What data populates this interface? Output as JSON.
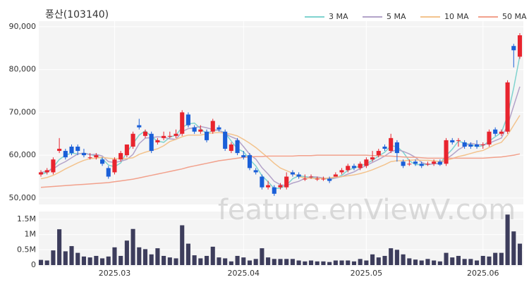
{
  "chart_data": {
    "type": "candlestick",
    "title": "풍산(103140)",
    "watermark": "feature.enViewV.com",
    "categories": [
      null,
      null,
      null,
      null,
      null,
      null,
      null,
      null,
      null,
      null,
      null,
      null,
      "2025.03",
      null,
      null,
      null,
      null,
      null,
      null,
      null,
      null,
      null,
      null,
      null,
      null,
      null,
      null,
      null,
      null,
      null,
      null,
      null,
      null,
      "2025.04",
      null,
      null,
      null,
      null,
      null,
      null,
      null,
      null,
      null,
      null,
      null,
      null,
      null,
      null,
      null,
      null,
      null,
      null,
      null,
      "2025.05",
      null,
      null,
      null,
      null,
      null,
      null,
      null,
      null,
      null,
      null,
      null,
      null,
      null,
      null,
      null,
      null,
      null,
      null,
      "2025.06",
      null,
      null,
      null,
      null,
      null,
      null
    ],
    "open": [
      55500,
      56000,
      56000,
      61000,
      61000,
      62000,
      62000,
      60500,
      59500,
      59500,
      59000,
      57000,
      56000,
      59000,
      60000,
      62000,
      67000,
      64500,
      65000,
      63000,
      64000,
      64500,
      64500,
      65000,
      69500,
      66500,
      65500,
      65500,
      65500,
      66500,
      65500,
      61000,
      63500,
      60000,
      60000,
      56500,
      55000,
      52500,
      52500,
      52500,
      52500,
      56000,
      55500,
      54500,
      55000,
      54500,
      54500,
      54500,
      55000,
      56000,
      56500,
      57500,
      57000,
      57500,
      59000,
      60000,
      62000,
      61000,
      63000,
      58500,
      58000,
      58500,
      58000,
      58000,
      58000,
      58500,
      58000,
      63500,
      63500,
      63000,
      62500,
      62500,
      62500,
      62500,
      66000,
      65000,
      65500,
      85500,
      83000
    ],
    "high": [
      56500,
      57000,
      59500,
      64000,
      61500,
      62500,
      62500,
      61500,
      60500,
      60500,
      59500,
      57500,
      59500,
      61000,
      62500,
      65500,
      68500,
      66000,
      65500,
      64000,
      65500,
      65500,
      66000,
      70500,
      70000,
      67000,
      67000,
      66000,
      68500,
      67000,
      66000,
      63000,
      64000,
      61000,
      60500,
      57000,
      55500,
      54000,
      53000,
      53500,
      56000,
      56500,
      56000,
      55500,
      55500,
      55000,
      55000,
      55000,
      56000,
      57000,
      58000,
      58000,
      58500,
      59500,
      61000,
      61500,
      62500,
      65000,
      63500,
      59000,
      59000,
      59000,
      58500,
      58500,
      59000,
      59000,
      64000,
      64000,
      64000,
      63500,
      63000,
      63500,
      63000,
      66000,
      66500,
      66000,
      77500,
      86000,
      88500
    ],
    "low": [
      55000,
      55500,
      55500,
      60500,
      59000,
      60000,
      60000,
      59500,
      59000,
      59000,
      57500,
      54500,
      55500,
      58500,
      59500,
      61500,
      66000,
      64000,
      60500,
      62500,
      63500,
      64000,
      64000,
      64500,
      66500,
      65000,
      65000,
      63000,
      65000,
      65500,
      61000,
      60500,
      60000,
      59000,
      56500,
      55500,
      52000,
      52000,
      50500,
      52000,
      52000,
      55000,
      54500,
      54000,
      54500,
      54000,
      54000,
      53500,
      55000,
      55500,
      56000,
      56500,
      56500,
      57000,
      58500,
      59500,
      61000,
      60500,
      58500,
      57000,
      57500,
      57500,
      57000,
      57500,
      57500,
      57500,
      57500,
      62500,
      62000,
      61500,
      61500,
      61500,
      61500,
      62000,
      64500,
      64500,
      65000,
      80500,
      82500
    ],
    "close": [
      56000,
      56500,
      59000,
      61500,
      59500,
      60500,
      61000,
      60000,
      59500,
      60000,
      58000,
      55000,
      59000,
      60500,
      62500,
      65000,
      66500,
      65500,
      61000,
      63500,
      64500,
      64500,
      65000,
      70000,
      67000,
      65500,
      66000,
      63500,
      68000,
      66000,
      61500,
      62500,
      60500,
      59500,
      57000,
      56000,
      52500,
      53000,
      51000,
      53000,
      55000,
      55500,
      55000,
      54500,
      55000,
      54500,
      54500,
      54000,
      55500,
      56500,
      57500,
      57000,
      58000,
      59000,
      59500,
      61000,
      61500,
      64000,
      60500,
      57500,
      58000,
      58000,
      57500,
      58000,
      58500,
      57800,
      63500,
      63000,
      63500,
      62000,
      62000,
      62000,
      62500,
      65500,
      65000,
      65500,
      77000,
      84500,
      88000
    ],
    "volume": [
      170000,
      150000,
      480000,
      1170000,
      450000,
      620000,
      400000,
      280000,
      250000,
      300000,
      220000,
      280000,
      580000,
      300000,
      800000,
      1180000,
      580000,
      520000,
      350000,
      550000,
      300000,
      250000,
      220000,
      1300000,
      700000,
      320000,
      220000,
      300000,
      600000,
      250000,
      220000,
      120000,
      300000,
      250000,
      150000,
      200000,
      550000,
      250000,
      200000,
      200000,
      200000,
      200000,
      150000,
      120000,
      150000,
      120000,
      120000,
      100000,
      150000,
      150000,
      150000,
      120000,
      200000,
      150000,
      350000,
      250000,
      300000,
      550000,
      500000,
      350000,
      220000,
      180000,
      150000,
      200000,
      150000,
      120000,
      400000,
      250000,
      300000,
      200000,
      200000,
      150000,
      300000,
      280000,
      400000,
      400000,
      1650000,
      1100000,
      700000
    ],
    "up_color": "#e8242e",
    "down_color": "#1a5fd8",
    "volume_color": "#3d3d5c",
    "series": [
      {
        "name": "3 MA",
        "color": "#7fd3cf",
        "values": [
          55500,
          56000,
          57200,
          59000,
          60000,
          60500,
          60300,
          60500,
          60200,
          59800,
          59200,
          57700,
          57300,
          58200,
          60700,
          62700,
          64700,
          65700,
          64300,
          63300,
          63000,
          64200,
          64700,
          66500,
          67300,
          67500,
          66200,
          65000,
          65800,
          65800,
          65200,
          63300,
          61500,
          60800,
          59000,
          57500,
          55200,
          53800,
          52200,
          52300,
          53000,
          54500,
          55200,
          55000,
          54800,
          54700,
          54700,
          54300,
          54700,
          55300,
          56500,
          57000,
          57500,
          58000,
          58800,
          59800,
          60700,
          62200,
          62000,
          60700,
          58700,
          57800,
          57800,
          57800,
          58000,
          58100,
          59900,
          61400,
          63300,
          62800,
          62500,
          62000,
          62200,
          63300,
          64300,
          65300,
          69200,
          75700,
          83200
        ]
      },
      {
        "name": "5 MA",
        "color": "#b3a3c9",
        "values": [
          56000,
          56200,
          56800,
          57800,
          58500,
          59400,
          60300,
          60500,
          60100,
          60200,
          59800,
          58500,
          58300,
          58600,
          59000,
          60200,
          62700,
          64000,
          64100,
          64300,
          64200,
          63800,
          63700,
          65500,
          66200,
          66400,
          66700,
          66400,
          66000,
          65800,
          65000,
          64300,
          63700,
          62000,
          60200,
          59100,
          57100,
          55600,
          53900,
          53100,
          52900,
          53500,
          53900,
          54600,
          55000,
          54900,
          54700,
          54500,
          54700,
          55000,
          55600,
          56100,
          56900,
          57600,
          58300,
          59000,
          59800,
          60800,
          61300,
          60900,
          60300,
          59500,
          58300,
          57800,
          58000,
          58000,
          59100,
          60100,
          61300,
          62100,
          62800,
          62500,
          62400,
          62800,
          63400,
          64000,
          67000,
          71500,
          76000
        ]
      },
      {
        "name": "10 MA",
        "color": "#f3c38d",
        "values": [
          54500,
          54800,
          55300,
          56000,
          56800,
          57500,
          58200,
          58800,
          59200,
          59300,
          59500,
          59300,
          59200,
          59200,
          59200,
          59400,
          60200,
          60700,
          61100,
          61500,
          62200,
          63200,
          63700,
          64300,
          64700,
          64700,
          64700,
          65000,
          65200,
          65300,
          65100,
          64900,
          64500,
          63700,
          62800,
          61800,
          60600,
          59400,
          58100,
          57000,
          56400,
          55800,
          55000,
          54700,
          54600,
          54600,
          54600,
          54700,
          54900,
          55000,
          55200,
          55400,
          55700,
          56100,
          56600,
          57200,
          57800,
          58500,
          58700,
          58700,
          58800,
          58900,
          58800,
          58800,
          58700,
          58500,
          58800,
          59200,
          59700,
          60000,
          60400,
          60800,
          61100,
          61800,
          62500,
          63000,
          64700,
          67000,
          69300
        ]
      },
      {
        "name": "50 MA",
        "color": "#f2a18c",
        "values": [
          52500,
          52600,
          52700,
          52800,
          52900,
          53000,
          53100,
          53200,
          53300,
          53400,
          53500,
          53600,
          53800,
          54000,
          54200,
          54400,
          54700,
          55000,
          55300,
          55600,
          55900,
          56200,
          56500,
          56800,
          57200,
          57500,
          57800,
          58100,
          58400,
          58700,
          58900,
          59100,
          59300,
          59500,
          59600,
          59700,
          59700,
          59800,
          59800,
          59800,
          59800,
          59800,
          59900,
          59900,
          59900,
          60000,
          60000,
          60000,
          60000,
          60000,
          60000,
          60000,
          60000,
          60000,
          59900,
          59900,
          59800,
          59800,
          59700,
          59600,
          59500,
          59500,
          59400,
          59300,
          59300,
          59300,
          59300,
          59300,
          59300,
          59300,
          59300,
          59300,
          59300,
          59400,
          59500,
          59600,
          59800,
          60000,
          60300
        ]
      }
    ],
    "ylim": [
      48500,
      91300
    ],
    "yticks": [
      {
        "value": 50000,
        "label": "50,000"
      },
      {
        "value": 60000,
        "label": "60,000"
      },
      {
        "value": 70000,
        "label": "70,000"
      },
      {
        "value": 80000,
        "label": "80,000"
      },
      {
        "value": 90000,
        "label": "90,000"
      }
    ],
    "volume_ylim": [
      0,
      1750000
    ],
    "volume_ticks": [
      {
        "value": 0,
        "label": "0"
      },
      {
        "value": 500000,
        "label": "0.5M"
      },
      {
        "value": 1000000,
        "label": "1M"
      },
      {
        "value": 1500000,
        "label": "1.5M"
      }
    ],
    "grid": true
  }
}
